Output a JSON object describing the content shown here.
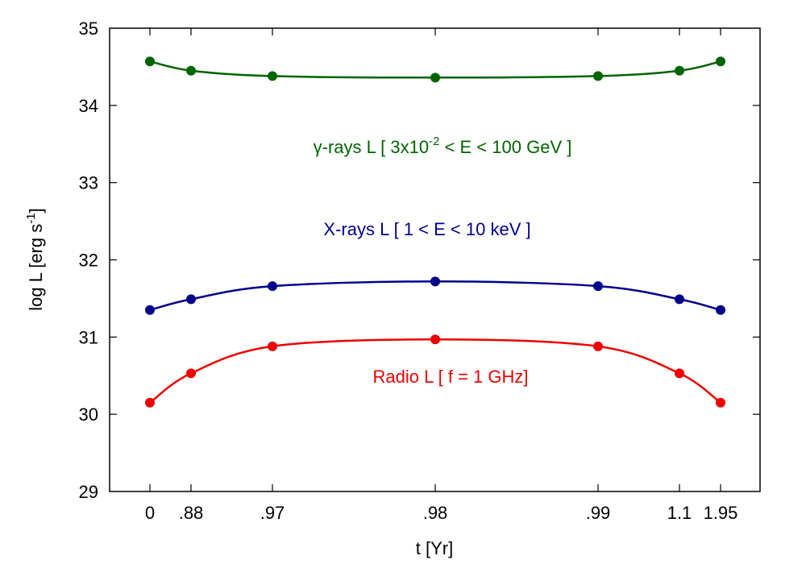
{
  "chart_data": {
    "type": "line",
    "xlabel": "t [Yr]",
    "ylabel": "log L [erg s",
    "ylabel_sup": "-1",
    "ylabel_close": "]",
    "ylim": [
      29,
      35
    ],
    "yticks": [
      "29",
      "30",
      "31",
      "32",
      "33",
      "34",
      "35"
    ],
    "x_tick_labels": [
      "0",
      ".88",
      ".97",
      ".98",
      ".99",
      "1.1",
      "1.95"
    ],
    "grid": false,
    "series": [
      {
        "key": "gamma",
        "color": "#006400",
        "label_parts": [
          "γ-rays L [ 3x10",
          "-2",
          " < E < 100 GeV ]"
        ],
        "values": [
          34.57,
          34.45,
          34.38,
          34.36,
          34.38,
          34.45,
          34.57
        ]
      },
      {
        "key": "xray",
        "color": "#00008b",
        "label_parts": [
          "X-rays L [ 1 < E < 10 keV ]"
        ],
        "values": [
          31.35,
          31.49,
          31.66,
          31.72,
          31.66,
          31.49,
          31.35
        ]
      },
      {
        "key": "radio",
        "color": "#ee0000",
        "label_parts": [
          "Radio L [ f = 1 GHz]"
        ],
        "values": [
          30.15,
          30.53,
          30.88,
          30.97,
          30.88,
          30.53,
          30.15
        ]
      }
    ]
  }
}
